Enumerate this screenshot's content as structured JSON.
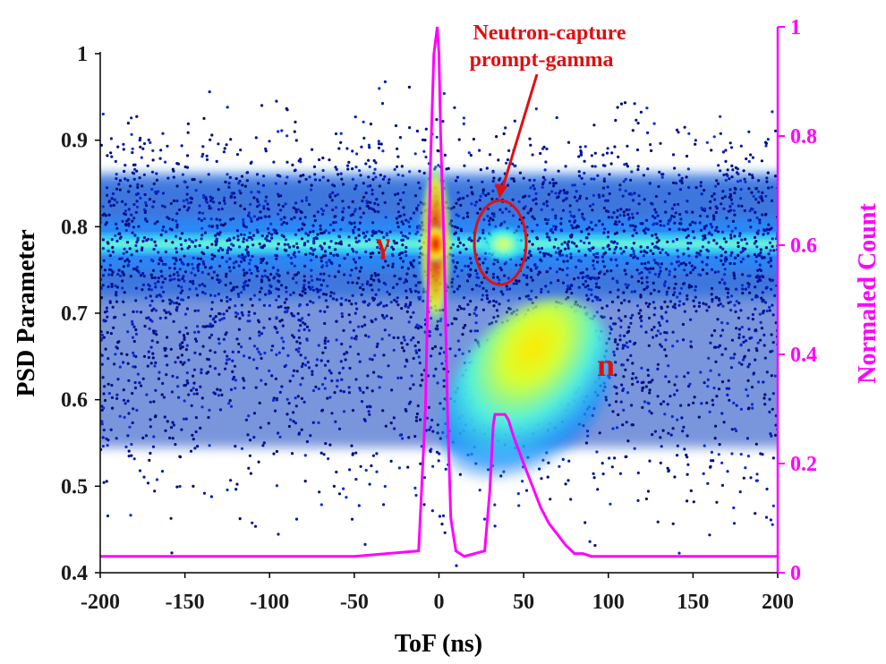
{
  "chart_data": {
    "type": "scatter",
    "title": "",
    "xlabel": "ToF (ns)",
    "ylabel": "PSD Parameter",
    "y2label": "Normaled Count",
    "xlim": [
      -200,
      200
    ],
    "ylim": [
      0.4,
      1.0
    ],
    "y2lim": [
      0,
      1
    ],
    "x_ticks": [
      "-200",
      "-150",
      "-100",
      "-50",
      "0",
      "50",
      "100",
      "150",
      "200"
    ],
    "y_ticks": [
      "0.4",
      "0.5",
      "0.6",
      "0.7",
      "0.8",
      "0.9",
      "1"
    ],
    "y2_ticks": [
      "0",
      "0.2",
      "0.4",
      "0.6",
      "0.8",
      "1"
    ],
    "density_map": {
      "description_free": true,
      "gamma_band_psd": 0.78,
      "gamma_peak_tof": -2,
      "neutron_cluster": {
        "tof_range": [
          28,
          95
        ],
        "psd_range": [
          0.5,
          0.71
        ]
      },
      "capture_spot": {
        "tof": 38,
        "psd": 0.78
      }
    },
    "series": [
      {
        "name": "Normaled Count",
        "axis": "right",
        "color": "#ff00ff",
        "x": [
          -200,
          -150,
          -100,
          -50,
          -12,
          -8,
          -5,
          -3,
          -1,
          0,
          1,
          3,
          5,
          7,
          10,
          15,
          27,
          30,
          32,
          33,
          36,
          39,
          41,
          44,
          50,
          55,
          60,
          65,
          70,
          75,
          80,
          85,
          90,
          100,
          150,
          200
        ],
        "values": [
          0.03,
          0.03,
          0.03,
          0.03,
          0.04,
          0.3,
          0.75,
          0.95,
          1.0,
          0.95,
          0.8,
          0.6,
          0.3,
          0.1,
          0.04,
          0.03,
          0.04,
          0.15,
          0.27,
          0.29,
          0.29,
          0.29,
          0.28,
          0.25,
          0.2,
          0.16,
          0.12,
          0.09,
          0.07,
          0.05,
          0.035,
          0.035,
          0.03,
          0.03,
          0.03,
          0.03
        ]
      }
    ],
    "annotations": {
      "gamma_label": "γ",
      "neutron_label": "n",
      "capture_label_line1": "Neutron-capture",
      "capture_label_line2": "prompt-gamma"
    }
  }
}
